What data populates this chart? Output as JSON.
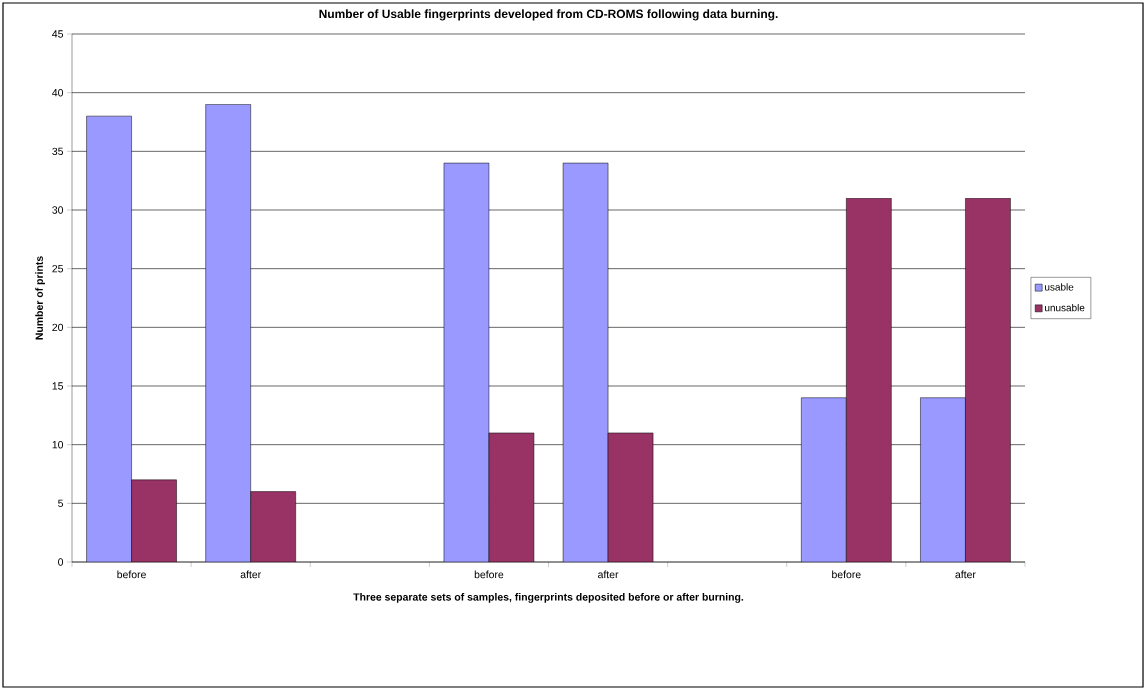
{
  "chart_data": {
    "type": "bar",
    "title": "Number of Usable fingerprints developed from CD-ROMS following data burning.",
    "xlabel": "Three separate sets of samples, fingerprints deposited before or after burning.",
    "ylabel": "Number of prints",
    "categories": [
      "before",
      "after",
      null,
      "before",
      "after",
      null,
      "before",
      "after"
    ],
    "series": [
      {
        "name": "usable",
        "color": "#9999ff",
        "values": [
          38,
          39,
          null,
          34,
          34,
          null,
          14,
          14
        ]
      },
      {
        "name": "unusable",
        "color": "#993366",
        "values": [
          7,
          6,
          null,
          11,
          11,
          null,
          31,
          31
        ]
      }
    ],
    "ylim": [
      0,
      45
    ],
    "yticks": [
      0,
      5,
      10,
      15,
      20,
      25,
      30,
      35,
      40,
      45
    ],
    "grid": "y",
    "legend": "right"
  }
}
